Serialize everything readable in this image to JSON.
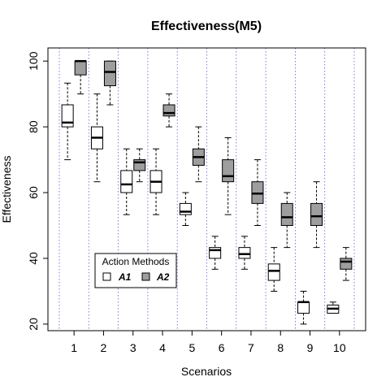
{
  "chart_data": {
    "type": "boxplot",
    "title": "Effectiveness(M5)",
    "xlabel": "Scenarios",
    "ylabel": "Effectiveness",
    "ylim": [
      18,
      104
    ],
    "yticks": [
      20,
      40,
      60,
      80,
      100
    ],
    "categories": [
      "1",
      "2",
      "3",
      "4",
      "5",
      "6",
      "7",
      "8",
      "9",
      "10"
    ],
    "grid": "vertical dotted separators between scenarios",
    "legend": {
      "title": "Action Methods",
      "position": "bottom-left",
      "entries": [
        {
          "label": "A1",
          "color": "#ffffff"
        },
        {
          "label": "A2",
          "color": "#9e9e9e"
        }
      ]
    },
    "series": [
      {
        "name": "A1",
        "color": "#ffffff",
        "boxes": [
          {
            "min": 70,
            "q1": 80,
            "median": 81.3,
            "q3": 86.7,
            "max": 93.3
          },
          {
            "min": 63.3,
            "q1": 73.3,
            "median": 76.7,
            "q3": 80,
            "max": 90
          },
          {
            "min": 53.3,
            "q1": 60,
            "median": 62.5,
            "q3": 66.7,
            "max": 73.3
          },
          {
            "min": 53.3,
            "q1": 60,
            "median": 63.3,
            "q3": 66.7,
            "max": 73.3
          },
          {
            "min": 50,
            "q1": 53.3,
            "median": 54.2,
            "q3": 56.7,
            "max": 60
          },
          {
            "min": 36.7,
            "q1": 40,
            "median": 42.5,
            "q3": 43.3,
            "max": 46.7
          },
          {
            "min": 36.7,
            "q1": 40,
            "median": 41.3,
            "q3": 43.3,
            "max": 46.7
          },
          {
            "min": 30,
            "q1": 33.3,
            "median": 36.2,
            "q3": 38.3,
            "max": 43.3
          },
          {
            "min": 20,
            "q1": 23.3,
            "median": 26.7,
            "q3": 26.7,
            "max": 30
          },
          {
            "min": 23.3,
            "q1": 23.3,
            "median": 24.7,
            "q3": 25.8,
            "max": 26.7
          }
        ]
      },
      {
        "name": "A2",
        "color": "#9e9e9e",
        "boxes": [
          {
            "min": 90,
            "q1": 95.8,
            "median": 100,
            "q3": 100,
            "max": 100
          },
          {
            "min": 86.7,
            "q1": 92.5,
            "median": 96.7,
            "q3": 100,
            "max": 100
          },
          {
            "min": 63.3,
            "q1": 66.7,
            "median": 69.2,
            "q3": 70,
            "max": 73.3
          },
          {
            "min": 80,
            "q1": 83.3,
            "median": 84.2,
            "q3": 86.7,
            "max": 90
          },
          {
            "min": 63.3,
            "q1": 68.3,
            "median": 70.8,
            "q3": 73.3,
            "max": 80
          },
          {
            "min": 53.3,
            "q1": 63.3,
            "median": 65,
            "q3": 70,
            "max": 76.7
          },
          {
            "min": 50,
            "q1": 56.7,
            "median": 59.7,
            "q3": 63.3,
            "max": 70
          },
          {
            "min": 43.3,
            "q1": 50,
            "median": 52.5,
            "q3": 56.7,
            "max": 60
          },
          {
            "min": 43.3,
            "q1": 50,
            "median": 52.8,
            "q3": 56.7,
            "max": 63.3
          },
          {
            "min": 33.3,
            "q1": 36.7,
            "median": 39,
            "q3": 40,
            "max": 43.3
          }
        ]
      }
    ]
  }
}
